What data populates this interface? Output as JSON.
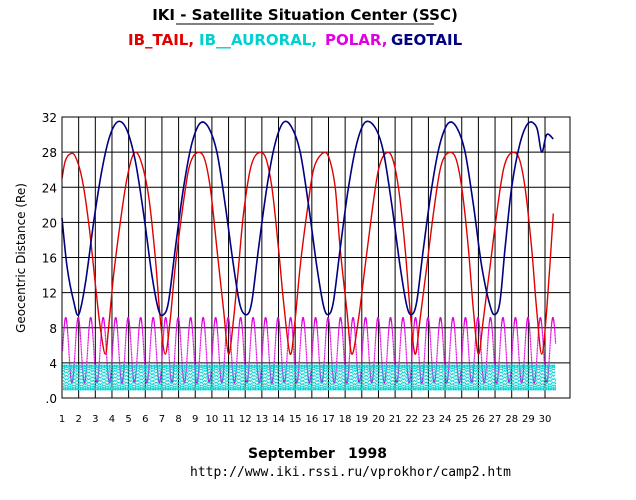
{
  "header": {
    "title": "IKI - Satellite Situation Center (SSC)"
  },
  "legend": [
    {
      "label": "IB_TAIL,",
      "color": "#e00000"
    },
    {
      "label": "IB__AURORAL,",
      "color": "#00d0d0"
    },
    {
      "label": "POLAR,",
      "color": "#e000e0"
    },
    {
      "label": "GEOTAIL",
      "color": "#000080"
    }
  ],
  "footer": {
    "month": "September",
    "year": "1998",
    "url": "http://www.iki.rssi.ru/vprokhor/camp2.htm"
  },
  "chart_data": {
    "type": "line",
    "title": "IKI - Satellite Situation Center (SSC)",
    "ylabel": "Geocentric Distance (Re)",
    "xlabel": "September 1998",
    "x_unit": "day of month",
    "xlim": [
      1,
      31.5
    ],
    "ylim": [
      0,
      32
    ],
    "y_ticks": [
      0,
      4,
      8,
      12,
      16,
      20,
      24,
      28,
      32
    ],
    "y_tick_labels": [
      ".0",
      "4",
      "8",
      "12",
      "16",
      "20",
      "24",
      "28",
      "32"
    ],
    "x_ticks": [
      1,
      2,
      3,
      4,
      5,
      6,
      7,
      8,
      9,
      10,
      11,
      12,
      13,
      14,
      15,
      16,
      17,
      18,
      19,
      20,
      21,
      22,
      23,
      24,
      25,
      26,
      27,
      28,
      29,
      30
    ],
    "grid": true,
    "legend_position": "top",
    "series": [
      {
        "name": "IB_TAIL",
        "color": "#e00000",
        "style": "solid",
        "x": [
          1.0,
          1.2,
          1.5,
          1.8,
          2.2,
          2.6,
          3.0,
          3.3,
          3.6,
          3.8,
          4.1,
          4.5,
          4.9,
          5.3,
          5.7,
          6.2,
          6.6,
          6.9,
          7.2,
          7.5,
          7.8,
          8.2,
          8.6,
          9.0,
          9.5,
          9.9,
          10.3,
          10.7,
          11.0,
          11.3,
          11.6,
          11.9,
          12.3,
          12.7,
          13.2,
          13.6,
          14.0,
          14.3,
          14.7,
          15.0,
          15.3,
          15.7,
          16.1,
          16.6,
          17.0,
          17.4,
          17.7,
          18.1,
          18.4,
          18.8,
          19.2,
          19.6,
          20.0,
          20.4,
          20.8,
          21.2,
          21.6,
          21.9,
          22.2,
          22.5,
          22.9,
          23.3,
          23.7,
          24.1,
          24.6,
          25.0,
          25.4,
          25.7,
          26.0,
          26.3,
          26.7,
          27.1,
          27.5,
          27.9,
          28.4,
          28.8,
          29.2,
          29.5,
          29.8,
          30.1,
          30.5
        ],
        "y": [
          25,
          27,
          27.8,
          27.5,
          25,
          20,
          13,
          8,
          5,
          8,
          14,
          20,
          25,
          27.8,
          27.2,
          23,
          16,
          9,
          5,
          9,
          15,
          21,
          26,
          27.8,
          27.5,
          24,
          17,
          10,
          5,
          9,
          15,
          21,
          26,
          27.8,
          27.5,
          24,
          17,
          11,
          5,
          9,
          15,
          21,
          26,
          27.8,
          27.5,
          24,
          17,
          10,
          5,
          9,
          15,
          21,
          26,
          27.8,
          27.5,
          24,
          17,
          10,
          5,
          9,
          15,
          21,
          26,
          27.8,
          27.5,
          24,
          17,
          10,
          5,
          9,
          15,
          21,
          26,
          27.8,
          27.5,
          24,
          17,
          10,
          5,
          10,
          21
        ]
      },
      {
        "name": "GEOTAIL",
        "color": "#000080",
        "style": "solid",
        "x": [
          1.0,
          1.3,
          1.7,
          2.0,
          2.4,
          2.9,
          3.4,
          3.9,
          4.4,
          4.9,
          5.4,
          5.9,
          6.4,
          6.8,
          7.1,
          7.4,
          7.8,
          8.3,
          8.8,
          9.3,
          9.8,
          10.3,
          10.8,
          11.3,
          11.7,
          12.1,
          12.4,
          12.8,
          13.3,
          13.8,
          14.3,
          14.8,
          15.3,
          15.8,
          16.3,
          16.7,
          17.0,
          17.3,
          17.7,
          18.2,
          18.7,
          19.2,
          19.8,
          20.3,
          20.8,
          21.3,
          21.7,
          22.0,
          22.3,
          22.7,
          23.2,
          23.7,
          24.2,
          24.7,
          25.2,
          25.7,
          26.2,
          26.7,
          27.0,
          27.3,
          27.6,
          28.0,
          28.5,
          29.0,
          29.5,
          29.8,
          30.1,
          30.5
        ],
        "y": [
          20.5,
          15,
          11,
          9.5,
          13,
          20,
          26,
          30,
          31.5,
          30.5,
          27,
          21,
          14,
          10,
          9.5,
          11,
          17,
          24,
          29,
          31.3,
          30.8,
          28,
          22,
          15,
          10.5,
          9.5,
          11,
          17,
          24,
          29,
          31.4,
          30.8,
          28,
          22,
          15,
          10.5,
          9.5,
          11,
          17,
          24,
          29,
          31.4,
          30.8,
          28,
          22,
          15,
          10.5,
          9.5,
          11,
          17,
          24,
          29,
          31.3,
          30.8,
          28,
          22,
          15,
          10.5,
          9.5,
          11,
          17,
          24,
          29,
          31.3,
          30.8,
          28,
          30,
          29.5
        ]
      },
      {
        "name": "POLAR",
        "color": "#e000e0",
        "style": "dotted",
        "orbit_period_days": 0.75,
        "apogee": 9.2,
        "perigee": 1.8
      },
      {
        "name": "IB_AURORAL",
        "color": "#00d0d0",
        "style": "dotted",
        "orbit_period_days": 0.1,
        "apogee": 3.8,
        "perigee": 1.0
      }
    ]
  }
}
